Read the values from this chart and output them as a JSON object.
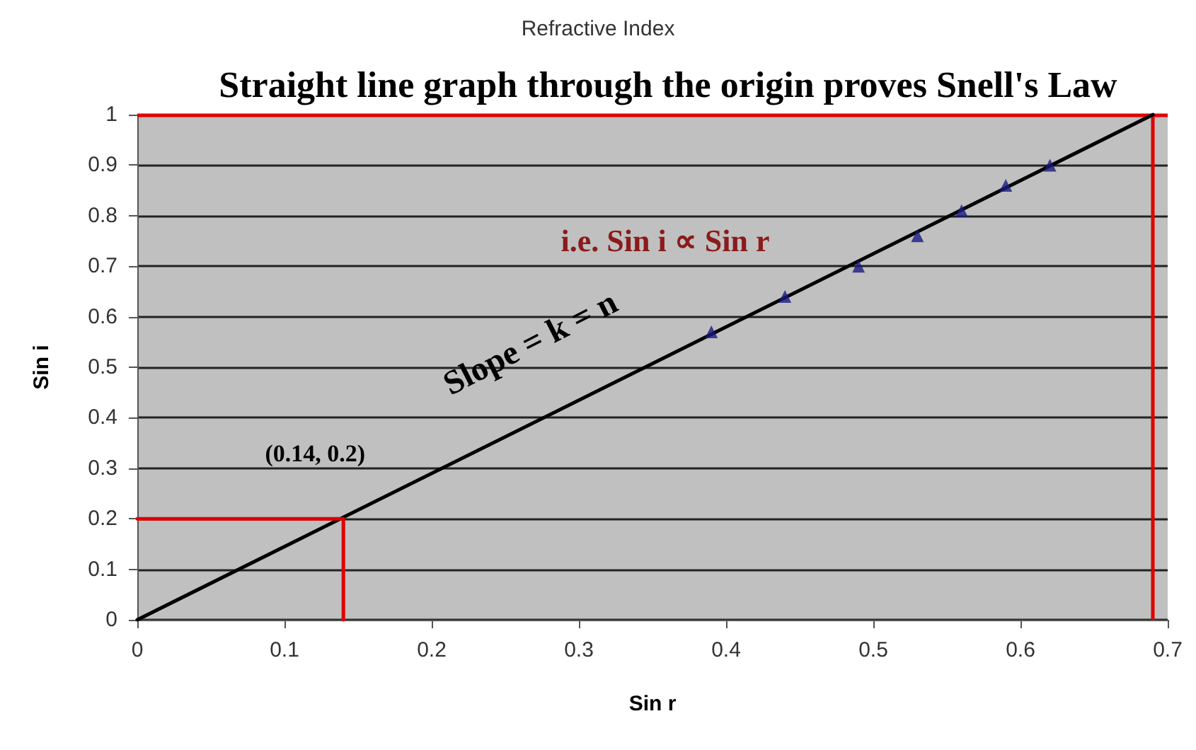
{
  "chart_data": {
    "type": "line",
    "title": "Refractive Index",
    "xlabel": "Sin r",
    "ylabel": "Sin i",
    "xlim": [
      0,
      0.7
    ],
    "xticks": [
      0,
      0.1,
      0.2,
      0.3,
      0.4,
      0.5,
      0.6,
      0.7
    ],
    "ylim": [
      0,
      1
    ],
    "yticks": [
      0,
      0.1,
      0.2,
      0.3,
      0.4,
      0.5,
      0.6,
      0.7,
      0.8,
      0.9,
      1
    ],
    "grid": "y",
    "series": [
      {
        "color": "#000000",
        "marker": "none",
        "line_style": "solid",
        "x": [
          0,
          0.69
        ],
        "values": [
          0,
          1
        ]
      },
      {
        "type": "scatter",
        "color": "#1a1a80",
        "marker": "triangle",
        "x": [
          0.39,
          0.44,
          0.49,
          0.53,
          0.56,
          0.59,
          0.62
        ],
        "values": [
          0.57,
          0.64,
          0.7,
          0.76,
          0.81,
          0.86,
          0.9
        ]
      },
      {
        "color": "#e00000",
        "marker": "none",
        "line_style": "solid",
        "x": [
          0,
          0.14,
          0.14
        ],
        "values": [
          0.2,
          0.2,
          0
        ]
      }
    ],
    "ref_lines": [
      {
        "axis": "y",
        "value": 1,
        "color": "#e00000",
        "line_style": "solid"
      },
      {
        "axis": "x",
        "value": 0.69,
        "color": "#e00000",
        "line_style": "solid"
      }
    ],
    "annotations": [
      "Straight line graph through the origin proves Snell's Law",
      "i.e. Sin i ∝ Sin r",
      "Slope = k = n",
      {
        "text": "(0.14, 0.2)",
        "x": 0.14,
        "y": 0.2
      }
    ]
  }
}
